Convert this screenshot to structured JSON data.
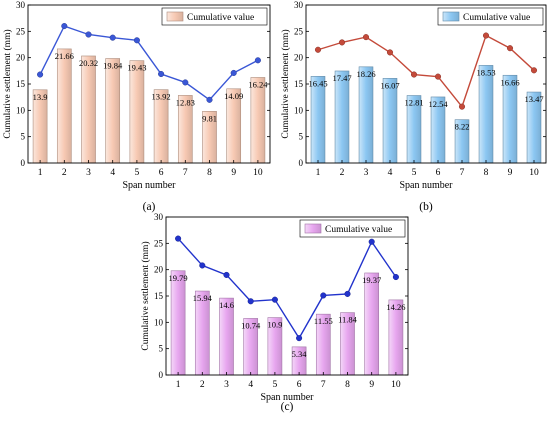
{
  "chart_data": [
    {
      "panel_label": "(a)",
      "type": "bar",
      "categories": [
        "1",
        "2",
        "3",
        "4",
        "5",
        "6",
        "7",
        "8",
        "9",
        "10"
      ],
      "yticks": [
        "0",
        "5",
        "10",
        "15",
        "20",
        "25",
        "30"
      ],
      "ylim": [
        0,
        30
      ],
      "xlabel": "Span number",
      "ylabel": "Cumulative settlement (mm)",
      "legend": {
        "label": "Cumulative value",
        "placement": "top-right"
      },
      "bar_color": "#f7c9b3",
      "line_color": "#3a57d6",
      "series": [
        {
          "name": "Cumulative value",
          "values": [
            13.9,
            21.66,
            20.32,
            19.84,
            19.43,
            13.92,
            12.83,
            9.81,
            14.09,
            16.24
          ],
          "value_labels": [
            "13.9",
            "21.66",
            "20.32",
            "19.84",
            "19.43",
            "13.92",
            "12.83",
            "9.81",
            "14.09",
            "16.24"
          ]
        }
      ],
      "line_values": [
        16.8,
        26.0,
        24.4,
        23.8,
        23.3,
        16.9,
        15.3,
        12.0,
        17.1,
        19.5
      ]
    },
    {
      "panel_label": "(b)",
      "type": "bar",
      "categories": [
        "1",
        "2",
        "3",
        "4",
        "5",
        "6",
        "7",
        "8",
        "9",
        "10"
      ],
      "yticks": [
        "0",
        "5",
        "10",
        "15",
        "20",
        "25",
        "30"
      ],
      "ylim": [
        0,
        30
      ],
      "xlabel": "Span number",
      "ylabel": "Cumulative settlement (mm)",
      "legend": {
        "label": "Cumulative value",
        "placement": "top-right"
      },
      "bar_color": "#8cc7f2",
      "line_color": "#c44a3a",
      "series": [
        {
          "name": "Cumulative value",
          "values": [
            16.45,
            17.47,
            18.26,
            16.07,
            12.81,
            12.54,
            8.22,
            18.53,
            16.66,
            13.47
          ],
          "value_labels": [
            "16.45",
            "17.47",
            "18.26",
            "16.07",
            "12.81",
            "12.54",
            "8.22",
            "18.53",
            "16.66",
            "13.47"
          ]
        }
      ],
      "line_values": [
        21.5,
        22.9,
        23.9,
        21.0,
        16.8,
        16.4,
        10.7,
        24.2,
        21.8,
        17.6
      ]
    },
    {
      "panel_label": "(c)",
      "type": "bar",
      "categories": [
        "1",
        "2",
        "3",
        "4",
        "5",
        "6",
        "7",
        "8",
        "9",
        "10"
      ],
      "yticks": [
        "0",
        "5",
        "10",
        "15",
        "20",
        "25",
        "30"
      ],
      "ylim": [
        0,
        30
      ],
      "xlabel": "Span number",
      "ylabel": "Cumulative settlement (mm)",
      "legend": {
        "label": "Cumulative value",
        "placement": "top-right"
      },
      "bar_color": "#e7a6ef",
      "line_color": "#2233cc",
      "series": [
        {
          "name": "Cumulative value",
          "values": [
            19.79,
            15.94,
            14.6,
            10.74,
            10.9,
            5.34,
            11.55,
            11.84,
            19.37,
            14.26
          ],
          "value_labels": [
            "19.79",
            "15.94",
            "14.6",
            "10.74",
            "10.9",
            "5.34",
            "11.55",
            "11.84",
            "19.37",
            "14.26"
          ]
        }
      ],
      "line_values": [
        25.9,
        20.8,
        19.0,
        14.0,
        14.3,
        7.0,
        15.1,
        15.4,
        25.3,
        18.6
      ]
    }
  ]
}
